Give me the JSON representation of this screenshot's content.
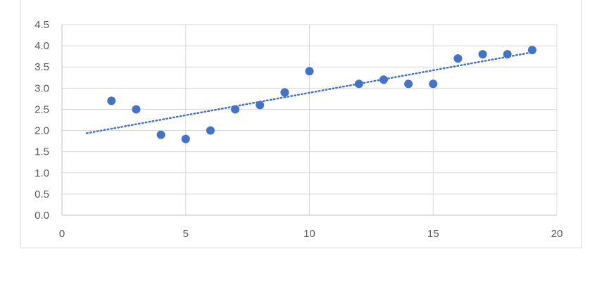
{
  "chart_data": {
    "type": "scatter",
    "title": "",
    "xlabel": "",
    "ylabel": "",
    "xlim": [
      0,
      20
    ],
    "ylim": [
      0,
      4.5
    ],
    "x_ticks": [
      "0",
      "5",
      "10",
      "15",
      "20"
    ],
    "y_ticks": [
      "0.0",
      "0.5",
      "1.0",
      "1.5",
      "2.0",
      "2.5",
      "3.0",
      "3.5",
      "4.0",
      "4.5"
    ],
    "grid": true,
    "series": [
      {
        "points": [
          {
            "x": 2,
            "y": 2.7
          },
          {
            "x": 3,
            "y": 2.5
          },
          {
            "x": 4,
            "y": 1.9
          },
          {
            "x": 5,
            "y": 1.8
          },
          {
            "x": 6,
            "y": 2.0
          },
          {
            "x": 7,
            "y": 2.5
          },
          {
            "x": 8,
            "y": 2.6
          },
          {
            "x": 9,
            "y": 2.9
          },
          {
            "x": 10,
            "y": 3.4
          },
          {
            "x": 12,
            "y": 3.1
          },
          {
            "x": 13,
            "y": 3.2
          },
          {
            "x": 14,
            "y": 3.1
          },
          {
            "x": 15,
            "y": 3.1
          },
          {
            "x": 16,
            "y": 3.7
          },
          {
            "x": 17,
            "y": 3.8
          },
          {
            "x": 18,
            "y": 3.8
          },
          {
            "x": 19,
            "y": 3.9
          }
        ],
        "color": "#4472c4"
      }
    ],
    "trendline": {
      "type": "linear",
      "style": "dotted",
      "color": "#4472c4",
      "x_range": [
        1,
        19
      ]
    }
  }
}
